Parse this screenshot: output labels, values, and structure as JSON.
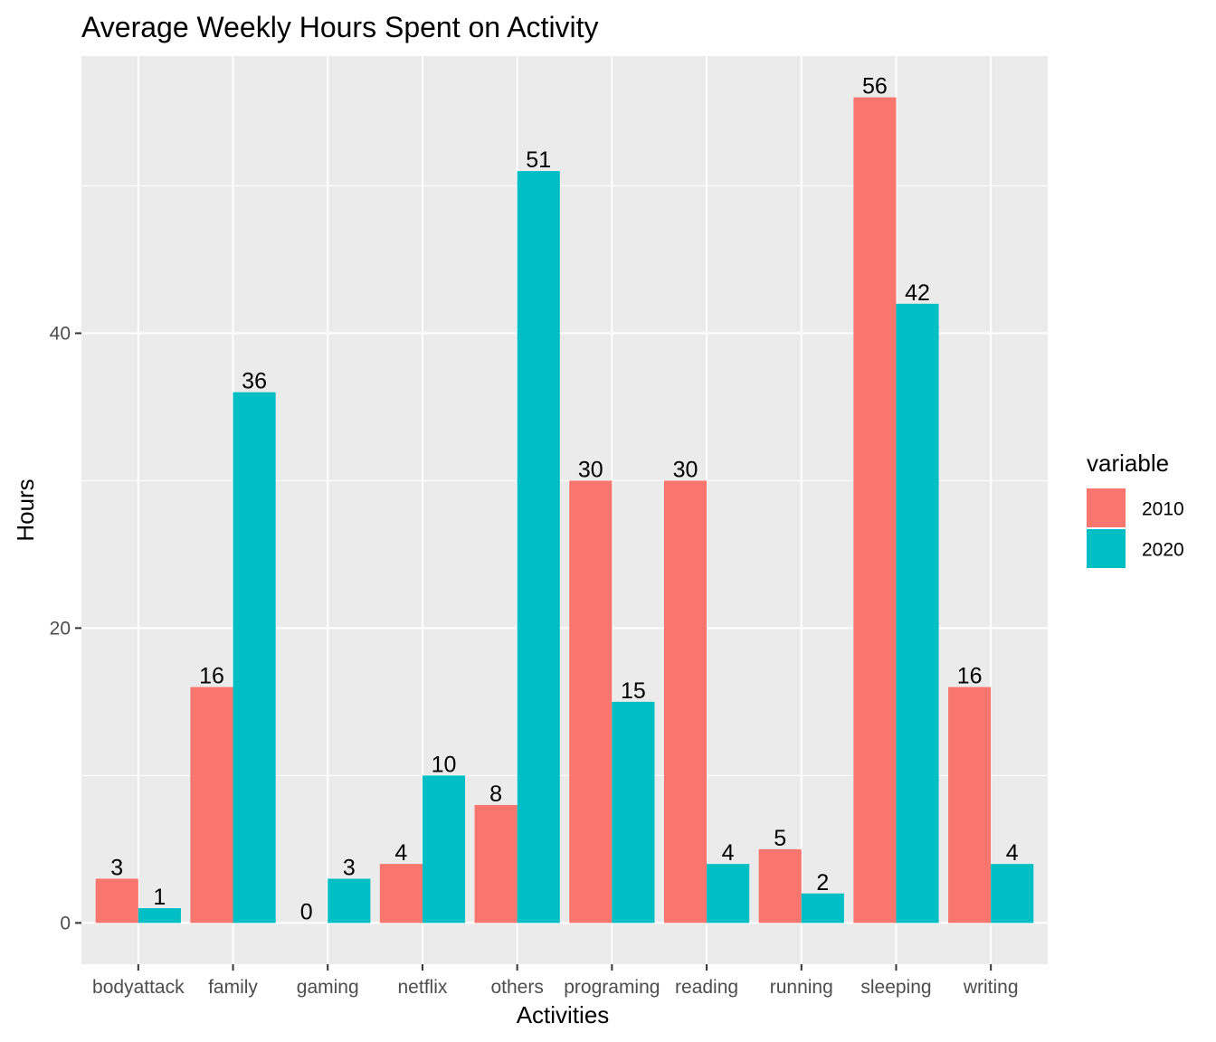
{
  "chart_data": {
    "type": "bar",
    "title": "Average Weekly Hours Spent on Activity",
    "xlabel": "Activities",
    "ylabel": "Hours",
    "categories": [
      "bodyattack",
      "family",
      "gaming",
      "netflix",
      "others",
      "programing",
      "reading",
      "running",
      "sleeping",
      "writing"
    ],
    "series": [
      {
        "name": "2010",
        "color": "#F8766D",
        "values": [
          3,
          16,
          0,
          4,
          8,
          30,
          30,
          5,
          56,
          16
        ]
      },
      {
        "name": "2020",
        "color": "#00BFC4",
        "values": [
          1,
          36,
          3,
          10,
          51,
          15,
          4,
          2,
          42,
          4
        ]
      }
    ],
    "ylim": [
      -2.8,
      58.8
    ],
    "yticks": [
      0,
      20,
      40
    ],
    "grid": true,
    "legend": {
      "title": "variable",
      "position": "right"
    },
    "panel_background": "#EBEBEB",
    "grid_color": "#FFFFFF"
  }
}
